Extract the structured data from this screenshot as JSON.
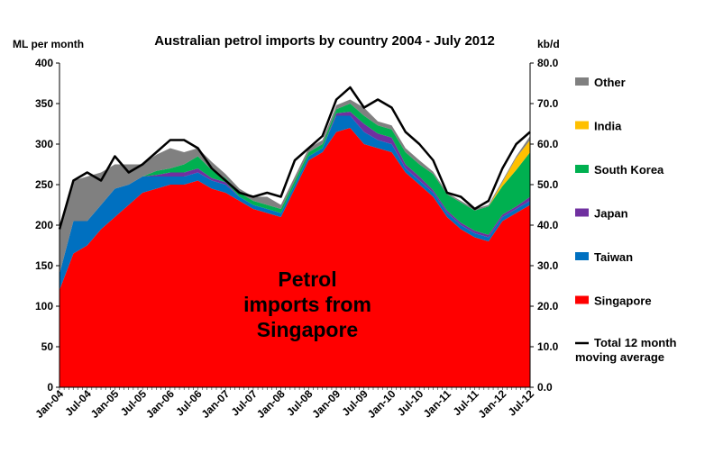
{
  "chart_data": {
    "type": "area",
    "stacked": true,
    "title": "Australian petrol imports by country 2004 - July 2012",
    "y_left_label": "ML per month",
    "y_right_label": "kb/d",
    "ylim_left": [
      0,
      400
    ],
    "ylim_right": [
      0,
      80
    ],
    "y_left_ticks": [
      "0",
      "50",
      "100",
      "150",
      "200",
      "250",
      "300",
      "350",
      "400"
    ],
    "y_right_ticks": [
      "0.0",
      "10.0",
      "20.0",
      "30.0",
      "40.0",
      "50.0",
      "60.0",
      "70.0",
      "80.0"
    ],
    "x_tick_labels": [
      "Jan-04",
      "Jul-04",
      "Jan-05",
      "Jul-05",
      "Jan-06",
      "Jul-06",
      "Jan-07",
      "Jul-07",
      "Jan-08",
      "Jul-08",
      "Jan-09",
      "Jul-09",
      "Jan-10",
      "Jul-10",
      "Jan-11",
      "Jul-11",
      "Jan-12",
      "Jul-12"
    ],
    "annotation": "Petrol imports from Singapore",
    "grid": false,
    "legend_position": "right",
    "x_months": [
      "2004-01",
      "2004-04",
      "2004-07",
      "2004-10",
      "2005-01",
      "2005-04",
      "2005-07",
      "2005-10",
      "2006-01",
      "2006-04",
      "2006-07",
      "2006-10",
      "2007-01",
      "2007-04",
      "2007-07",
      "2007-10",
      "2008-01",
      "2008-04",
      "2008-07",
      "2008-10",
      "2009-01",
      "2009-04",
      "2009-07",
      "2009-10",
      "2010-01",
      "2010-04",
      "2010-07",
      "2010-10",
      "2011-01",
      "2011-04",
      "2011-07",
      "2011-10",
      "2012-01",
      "2012-04",
      "2012-07"
    ],
    "series": [
      {
        "name": "Singapore",
        "color": "#ff0000",
        "values": [
          120,
          165,
          175,
          195,
          210,
          225,
          240,
          245,
          250,
          250,
          255,
          245,
          240,
          230,
          220,
          215,
          210,
          245,
          280,
          290,
          315,
          320,
          300,
          295,
          290,
          265,
          250,
          235,
          210,
          195,
          185,
          180,
          205,
          215,
          225
        ]
      },
      {
        "name": "Taiwan",
        "color": "#0070c0",
        "values": [
          20,
          40,
          30,
          30,
          35,
          25,
          20,
          15,
          10,
          10,
          10,
          10,
          10,
          5,
          5,
          5,
          5,
          5,
          5,
          5,
          20,
          15,
          15,
          10,
          10,
          5,
          5,
          5,
          5,
          5,
          5,
          5,
          5,
          5,
          5
        ]
      },
      {
        "name": "Japan",
        "color": "#7030a0",
        "values": [
          0,
          0,
          0,
          0,
          0,
          0,
          0,
          2,
          5,
          5,
          5,
          3,
          3,
          0,
          0,
          0,
          0,
          0,
          0,
          0,
          3,
          5,
          10,
          8,
          8,
          5,
          5,
          3,
          3,
          3,
          3,
          3,
          3,
          3,
          5
        ]
      },
      {
        "name": "South Korea",
        "color": "#00b050",
        "values": [
          0,
          0,
          0,
          0,
          0,
          0,
          0,
          5,
          5,
          10,
          15,
          10,
          5,
          5,
          5,
          5,
          5,
          5,
          5,
          5,
          5,
          10,
          10,
          10,
          10,
          15,
          15,
          20,
          20,
          25,
          25,
          35,
          35,
          45,
          55
        ]
      },
      {
        "name": "India",
        "color": "#ffc000",
        "values": [
          0,
          0,
          0,
          0,
          0,
          0,
          0,
          0,
          0,
          0,
          0,
          0,
          0,
          0,
          0,
          0,
          0,
          0,
          0,
          0,
          0,
          0,
          0,
          0,
          0,
          0,
          0,
          0,
          0,
          0,
          0,
          0,
          5,
          15,
          15
        ]
      },
      {
        "name": "Other",
        "color": "#808080",
        "values": [
          60,
          50,
          55,
          40,
          30,
          25,
          15,
          20,
          25,
          15,
          10,
          10,
          5,
          5,
          5,
          10,
          5,
          5,
          5,
          5,
          5,
          5,
          10,
          5,
          5,
          5,
          5,
          3,
          2,
          2,
          2,
          2,
          2,
          2,
          5
        ]
      }
    ],
    "line_series": {
      "name": "Total 12 month moving average",
      "color": "#000000",
      "values": [
        195,
        255,
        265,
        255,
        285,
        265,
        275,
        290,
        305,
        305,
        295,
        270,
        255,
        240,
        235,
        240,
        235,
        280,
        295,
        310,
        355,
        370,
        345,
        355,
        345,
        315,
        300,
        280,
        240,
        235,
        220,
        230,
        270,
        300,
        315
      ]
    },
    "legend_entries": [
      {
        "label": "Other",
        "color": "#808080",
        "kind": "box"
      },
      {
        "label": "India",
        "color": "#ffc000",
        "kind": "box"
      },
      {
        "label": "South Korea",
        "color": "#00b050",
        "kind": "box"
      },
      {
        "label": "Japan",
        "color": "#7030a0",
        "kind": "box"
      },
      {
        "label": "Taiwan",
        "color": "#0070c0",
        "kind": "box"
      },
      {
        "label": "Singapore",
        "color": "#ff0000",
        "kind": "box"
      },
      {
        "label": "Total 12 month moving average",
        "color": "#000000",
        "kind": "line"
      }
    ]
  }
}
